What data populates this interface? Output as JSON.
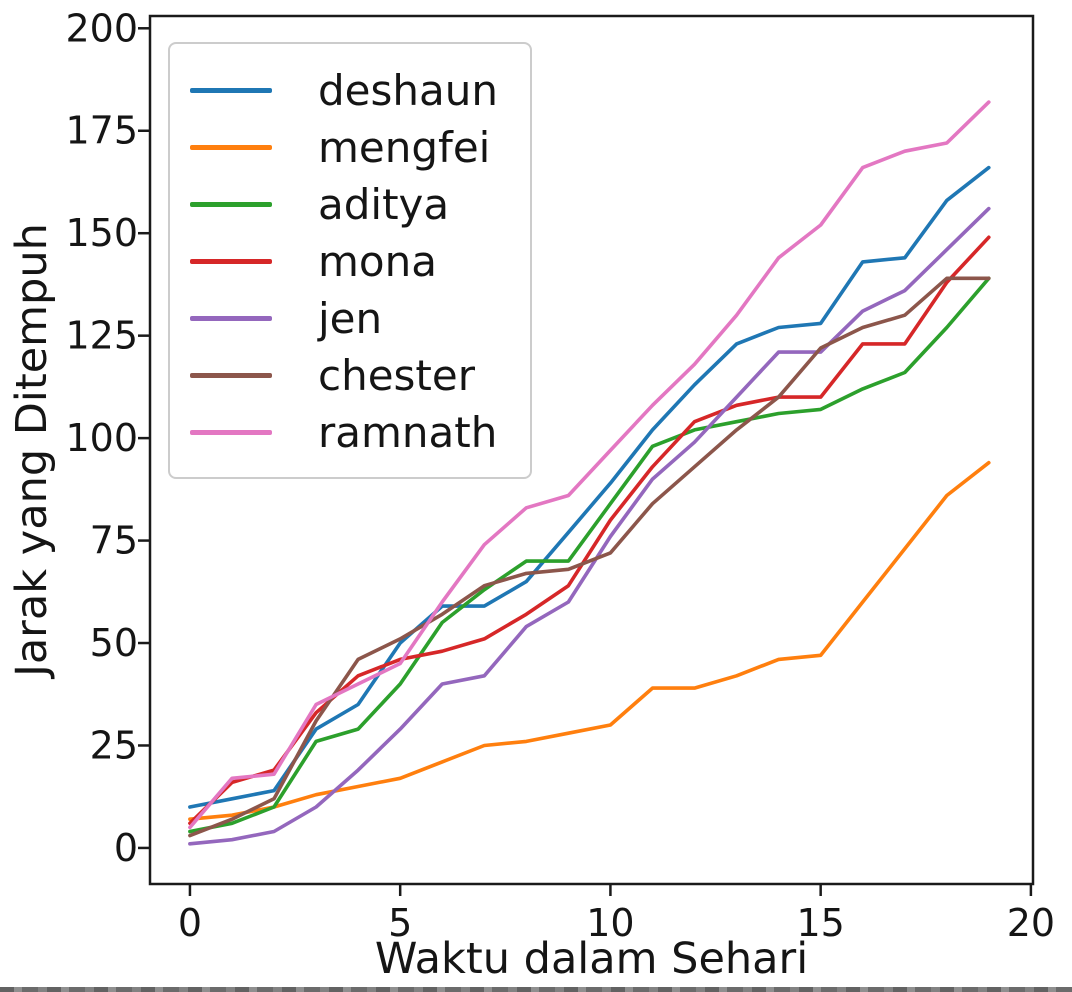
{
  "chart_data": {
    "type": "line",
    "title": "",
    "xlabel": "Waktu dalam Sehari",
    "ylabel": "Jarak yang Ditempuh",
    "x": [
      0,
      1,
      2,
      3,
      4,
      5,
      6,
      7,
      8,
      9,
      10,
      11,
      12,
      13,
      14,
      15,
      16,
      17,
      18,
      19
    ],
    "xlim": [
      -0.95,
      20.05
    ],
    "ylim": [
      -8.8,
      203
    ],
    "xticks": [
      0,
      5,
      10,
      15,
      20
    ],
    "yticks": [
      0,
      25,
      50,
      75,
      100,
      125,
      150,
      175,
      200
    ],
    "grid": false,
    "legend_position": "upper left",
    "series": [
      {
        "name": "deshaun",
        "color": "#1f77b4",
        "values": [
          10,
          12,
          14,
          29,
          35,
          50,
          59,
          59,
          65,
          77,
          89,
          102,
          113,
          123,
          127,
          128,
          143,
          144,
          158,
          166
        ]
      },
      {
        "name": "mengfei",
        "color": "#ff7f0e",
        "values": [
          7,
          8,
          10,
          13,
          15,
          17,
          21,
          25,
          26,
          28,
          30,
          39,
          39,
          42,
          46,
          47,
          60,
          73,
          86,
          94
        ]
      },
      {
        "name": "aditya",
        "color": "#2ca02c",
        "values": [
          4,
          6,
          10,
          26,
          29,
          40,
          55,
          63,
          70,
          70,
          84,
          98,
          102,
          104,
          106,
          107,
          112,
          116,
          127,
          139
        ]
      },
      {
        "name": "mona",
        "color": "#d62728",
        "values": [
          6,
          16,
          19,
          33,
          42,
          46,
          48,
          51,
          57,
          64,
          80,
          93,
          104,
          108,
          110,
          110,
          123,
          123,
          138,
          149
        ]
      },
      {
        "name": "jen",
        "color": "#9467bd",
        "values": [
          1,
          2,
          4,
          10,
          19,
          29,
          40,
          42,
          54,
          60,
          76,
          90,
          99,
          110,
          121,
          121,
          131,
          136,
          146,
          156
        ]
      },
      {
        "name": "chester",
        "color": "#8c564b",
        "values": [
          3,
          7,
          12,
          31,
          46,
          51,
          57,
          64,
          67,
          68,
          72,
          84,
          93,
          102,
          110,
          122,
          127,
          130,
          139,
          139
        ]
      },
      {
        "name": "ramnath",
        "color": "#e377c2",
        "values": [
          5,
          17,
          18,
          35,
          40,
          45,
          60,
          74,
          83,
          86,
          97,
          108,
          118,
          130,
          144,
          152,
          166,
          170,
          172,
          182
        ]
      }
    ]
  },
  "style": {
    "axis_color": "#1a1a1a",
    "tick_label_color": "#151515",
    "legend_border_color": "#cccccc"
  }
}
